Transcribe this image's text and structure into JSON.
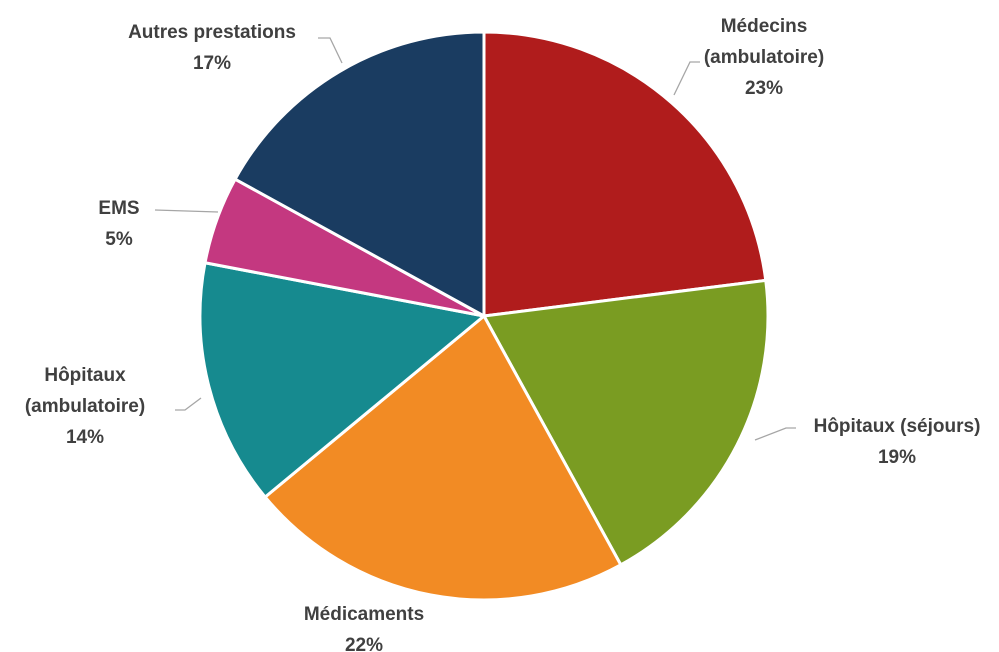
{
  "chart_data": {
    "type": "pie",
    "title": "",
    "start_angle_deg": 0,
    "direction": "clockwise",
    "slices": [
      {
        "label_lines": [
          "Médecins",
          "(ambulatoire)"
        ],
        "value": 23,
        "value_label": "23%",
        "color": "#b01c1c"
      },
      {
        "label_lines": [
          "Hôpitaux (séjours)"
        ],
        "value": 19,
        "value_label": "19%",
        "color": "#7a9c22"
      },
      {
        "label_lines": [
          "Médicaments"
        ],
        "value": 22,
        "value_label": "22%",
        "color": "#f28b24"
      },
      {
        "label_lines": [
          "Hôpitaux",
          "(ambulatoire)"
        ],
        "value": 14,
        "value_label": "14%",
        "color": "#168a8f"
      },
      {
        "label_lines": [
          "EMS"
        ],
        "value": 5,
        "value_label": "5%",
        "color": "#c43880"
      },
      {
        "label_lines": [
          "Autres prestations"
        ],
        "value": 17,
        "value_label": "17%",
        "color": "#1a3c61"
      }
    ]
  }
}
